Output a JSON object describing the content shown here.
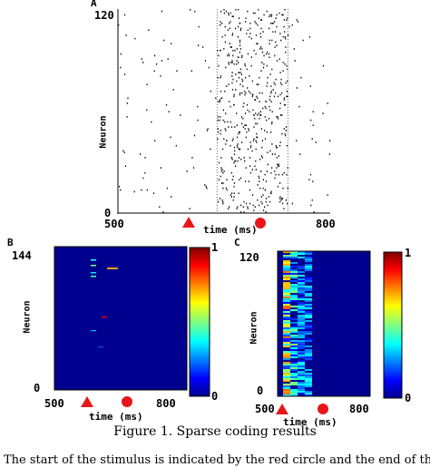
{
  "figure": {
    "caption": "Figure 1. Sparse coding results",
    "body_text": "The start of the stimulus is indicated by the red circle and the end of the"
  },
  "panel_a": {
    "letter": "A",
    "ylabel": "Neuron",
    "xlabel": "time (ms)",
    "x_ticks": [
      "500",
      "800"
    ],
    "y_ticks": [
      "120",
      "0"
    ],
    "marker_color": "#e8161b"
  },
  "panel_b": {
    "letter": "B",
    "ylabel": "Neuron",
    "xlabel": "time (ms)",
    "x_ticks": [
      "500",
      "800"
    ],
    "y_ticks": [
      "144",
      "0"
    ],
    "colorbar_ticks": [
      "1",
      "0"
    ],
    "background_color": "#00008f"
  },
  "panel_c": {
    "letter": "C",
    "ylabel": "Neuron",
    "xlabel": "time (ms)",
    "x_ticks": [
      "500",
      "800"
    ],
    "y_ticks": [
      "120",
      "0"
    ],
    "colorbar_ticks": [
      "1",
      "0"
    ],
    "background_color": "#00008f"
  },
  "chart_data": [
    {
      "type": "scatter",
      "title": "",
      "xlabel": "time (ms)",
      "ylabel": "Neuron",
      "xlim": [
        500,
        800
      ],
      "ylim": [
        0,
        120
      ],
      "description_series": "spike raster",
      "stimulus_start_ms": 640,
      "stimulus_end_ms": 700
    },
    {
      "type": "heatmap",
      "xlabel": "time (ms)",
      "ylabel": "Neuron",
      "xlim": [
        500,
        800
      ],
      "ylim": [
        0,
        144
      ],
      "colorbar_range": [
        0,
        1
      ]
    },
    {
      "type": "heatmap",
      "xlabel": "time (ms)",
      "ylabel": "Neuron",
      "xlim": [
        500,
        800
      ],
      "ylim": [
        0,
        120
      ],
      "colorbar_range": [
        0,
        1
      ]
    }
  ]
}
